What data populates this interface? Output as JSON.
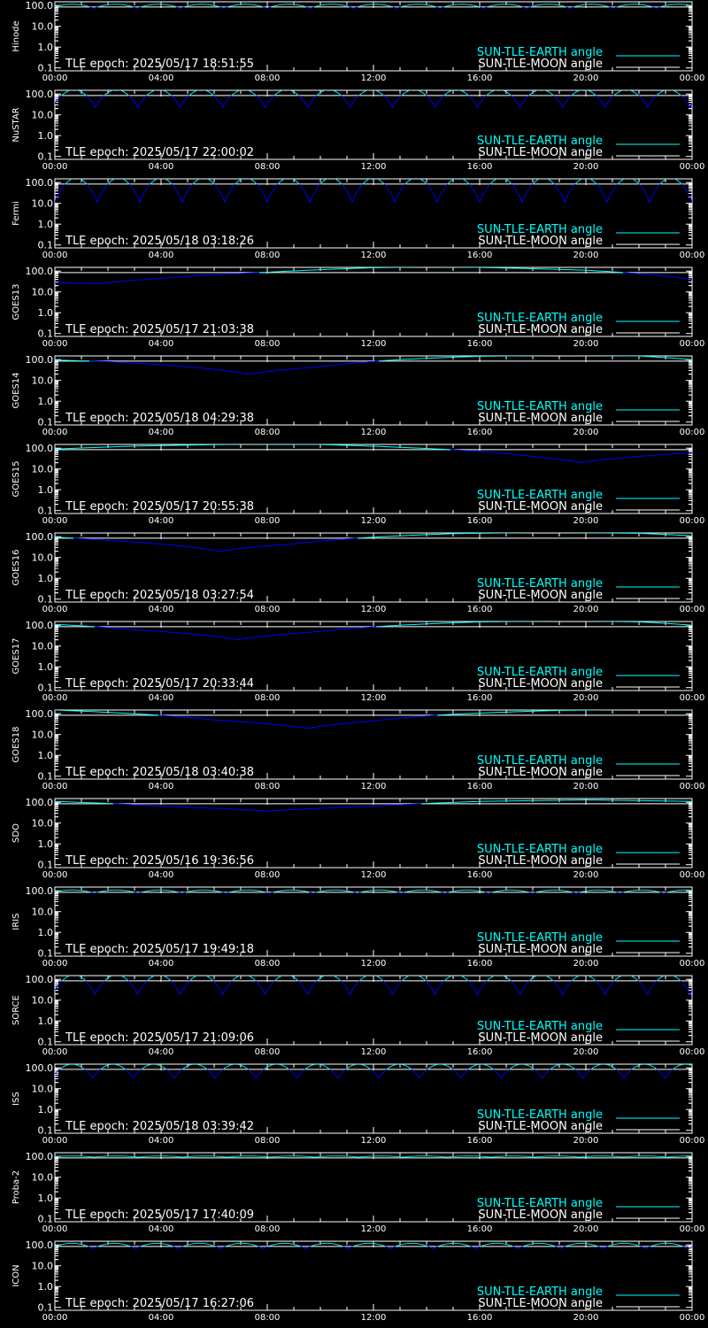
{
  "time_ticks": [
    "00:00",
    "04:00",
    "08:00",
    "12:00",
    "16:00",
    "20:00",
    "00:00"
  ],
  "y_ticks": [
    "100.0",
    "10.0",
    "1.0",
    "0.1"
  ],
  "legend": {
    "earth": "SUN-TLE-EARTH angle",
    "moon": "SUN-TLE-MOON angle"
  },
  "colors": {
    "background": "#000000",
    "axes": "#ffffff",
    "earth_label": "#00ffff",
    "earth_curve_peak": "#00ffff",
    "earth_curve_low": "#0000ff",
    "moon_curve": "#ffffff"
  },
  "chart_data": [
    {
      "type": "line",
      "ylabel": "Hinode",
      "epoch_text": "TLE epoch: 2025/05/17 18:51:55",
      "yscale": "log",
      "ylim": [
        0.1,
        180
      ],
      "xlim_hours": [
        0,
        24
      ],
      "moon_angle": 85,
      "earth": {
        "kind": "orbit",
        "period_hours": 1.63,
        "max": 115,
        "min": 72,
        "phase": 0.1
      }
    },
    {
      "type": "line",
      "ylabel": "NuSTAR",
      "epoch_text": "TLE epoch: 2025/05/17 22:00:02",
      "yscale": "log",
      "ylim": [
        0.1,
        180
      ],
      "xlim_hours": [
        0,
        24
      ],
      "moon_angle": 85,
      "earth": {
        "kind": "orbit",
        "period_hours": 1.6,
        "max": 160,
        "min": 22,
        "phase": 0.05
      }
    },
    {
      "type": "line",
      "ylabel": "Fermi",
      "epoch_text": "TLE epoch: 2025/05/18 03:18:26",
      "yscale": "log",
      "ylim": [
        0.1,
        180
      ],
      "xlim_hours": [
        0,
        24
      ],
      "moon_angle": 85,
      "earth": {
        "kind": "orbit",
        "period_hours": 1.6,
        "max": 165,
        "min": 11,
        "phase": 0.0
      }
    },
    {
      "type": "line",
      "ylabel": "GOES13",
      "epoch_text": "TLE epoch: 2025/05/17 21:03:38",
      "yscale": "log",
      "ylim": [
        0.1,
        180
      ],
      "xlim_hours": [
        0,
        24
      ],
      "moon_angle": 85,
      "earth": {
        "kind": "geo",
        "points": [
          [
            0,
            28
          ],
          [
            1.7,
            25
          ],
          [
            4,
            45
          ],
          [
            8,
            88
          ],
          [
            12,
            145
          ],
          [
            14,
            158
          ],
          [
            16,
            150
          ],
          [
            20,
            110
          ],
          [
            24,
            40
          ]
        ]
      }
    },
    {
      "type": "line",
      "ylabel": "GOES14",
      "epoch_text": "TLE epoch: 2025/05/18 04:29:38",
      "yscale": "log",
      "ylim": [
        0.1,
        180
      ],
      "xlim_hours": [
        0,
        24
      ],
      "moon_angle": 85,
      "earth": {
        "kind": "geo",
        "points": [
          [
            0,
            95
          ],
          [
            2,
            80
          ],
          [
            5,
            45
          ],
          [
            7.3,
            20
          ],
          [
            10,
            45
          ],
          [
            13,
            100
          ],
          [
            16,
            145
          ],
          [
            19,
            160
          ],
          [
            22,
            150
          ],
          [
            24,
            100
          ]
        ]
      }
    },
    {
      "type": "line",
      "ylabel": "GOES15",
      "epoch_text": "TLE epoch: 2025/05/17 20:55:38",
      "yscale": "log",
      "ylim": [
        0.1,
        180
      ],
      "xlim_hours": [
        0,
        24
      ],
      "moon_angle": 85,
      "earth": {
        "kind": "geo",
        "points": [
          [
            0,
            90
          ],
          [
            3,
            125
          ],
          [
            7,
            155
          ],
          [
            10,
            150
          ],
          [
            13,
            110
          ],
          [
            16,
            70
          ],
          [
            18,
            40
          ],
          [
            19.8,
            20
          ],
          [
            22,
            40
          ],
          [
            24,
            60
          ]
        ]
      }
    },
    {
      "type": "line",
      "ylabel": "GOES16",
      "epoch_text": "TLE epoch: 2025/05/18 03:27:54",
      "yscale": "log",
      "ylim": [
        0.1,
        180
      ],
      "xlim_hours": [
        0,
        24
      ],
      "moon_angle": 85,
      "earth": {
        "kind": "geo",
        "points": [
          [
            0,
            95
          ],
          [
            2.5,
            60
          ],
          [
            6.2,
            20
          ],
          [
            9,
            45
          ],
          [
            12,
            95
          ],
          [
            15,
            140
          ],
          [
            18.5,
            160
          ],
          [
            22,
            145
          ],
          [
            24,
            110
          ]
        ]
      }
    },
    {
      "type": "line",
      "ylabel": "GOES17",
      "epoch_text": "TLE epoch: 2025/05/17 20:33:44",
      "yscale": "log",
      "ylim": [
        0.1,
        180
      ],
      "xlim_hours": [
        0,
        24
      ],
      "moon_angle": 85,
      "earth": {
        "kind": "geo",
        "points": [
          [
            0,
            110
          ],
          [
            3,
            60
          ],
          [
            6.9,
            20
          ],
          [
            10,
            50
          ],
          [
            13,
            100
          ],
          [
            16,
            145
          ],
          [
            19.5,
            160
          ],
          [
            22,
            145
          ],
          [
            24,
            100
          ]
        ]
      }
    },
    {
      "type": "line",
      "ylabel": "GOES18",
      "epoch_text": "TLE epoch: 2025/05/18 03:40:38",
      "yscale": "log",
      "ylim": [
        0.1,
        180
      ],
      "xlim_hours": [
        0,
        24
      ],
      "moon_angle": 85,
      "earth": {
        "kind": "geo",
        "points": [
          [
            0,
            150
          ],
          [
            3,
            100
          ],
          [
            6,
            50
          ],
          [
            9.5,
            20
          ],
          [
            12,
            45
          ],
          [
            15,
            95
          ],
          [
            19,
            145
          ],
          [
            22,
            160
          ],
          [
            24,
            155
          ]
        ]
      }
    },
    {
      "type": "line",
      "ylabel": "SDO",
      "epoch_text": "TLE epoch: 2025/05/16 19:36:56",
      "yscale": "log",
      "ylim": [
        0.1,
        180
      ],
      "xlim_hours": [
        0,
        24
      ],
      "moon_angle": 85,
      "earth": {
        "kind": "geo",
        "points": [
          [
            0,
            110
          ],
          [
            4,
            65
          ],
          [
            8,
            38
          ],
          [
            12,
            65
          ],
          [
            16,
            110
          ],
          [
            20,
            130
          ],
          [
            24,
            110
          ]
        ]
      }
    },
    {
      "type": "line",
      "ylabel": "IRIS",
      "epoch_text": "TLE epoch: 2025/05/17 19:49:18",
      "yscale": "log",
      "ylim": [
        0.1,
        180
      ],
      "xlim_hours": [
        0,
        24
      ],
      "moon_angle": 85,
      "earth": {
        "kind": "orbit",
        "period_hours": 1.65,
        "max": 110,
        "min": 75,
        "phase": 0.1
      }
    },
    {
      "type": "line",
      "ylabel": "SORCE",
      "epoch_text": "TLE epoch: 2025/05/17 21:09:06",
      "yscale": "log",
      "ylim": [
        0.1,
        180
      ],
      "xlim_hours": [
        0,
        24
      ],
      "moon_angle": 85,
      "earth": {
        "kind": "orbit",
        "period_hours": 1.6,
        "max": 165,
        "min": 18,
        "phase": 0.05
      }
    },
    {
      "type": "line",
      "ylabel": "ISS",
      "epoch_text": "TLE epoch: 2025/05/18 03:39:42",
      "yscale": "log",
      "ylim": [
        0.1,
        180
      ],
      "xlim_hours": [
        0,
        24
      ],
      "moon_angle": 85,
      "earth": {
        "kind": "orbit",
        "period_hours": 1.54,
        "max": 150,
        "min": 30,
        "phase": 0.08
      }
    },
    {
      "type": "line",
      "ylabel": "Proba-2",
      "epoch_text": "TLE epoch: 2025/05/17 17:40:09",
      "yscale": "log",
      "ylim": [
        0.1,
        180
      ],
      "xlim_hours": [
        0,
        24
      ],
      "moon_angle": 85,
      "earth": {
        "kind": "orbit",
        "period_hours": 1.66,
        "max": 105,
        "min": 92,
        "phase": 0.1
      }
    },
    {
      "type": "line",
      "ylabel": "ICON",
      "epoch_text": "TLE epoch: 2025/05/17 16:27:06",
      "yscale": "log",
      "ylim": [
        0.1,
        180
      ],
      "xlim_hours": [
        0,
        24
      ],
      "moon_angle": 85,
      "earth": {
        "kind": "orbit",
        "period_hours": 1.6,
        "max": 120,
        "min": 65,
        "phase": 0.1
      }
    }
  ]
}
